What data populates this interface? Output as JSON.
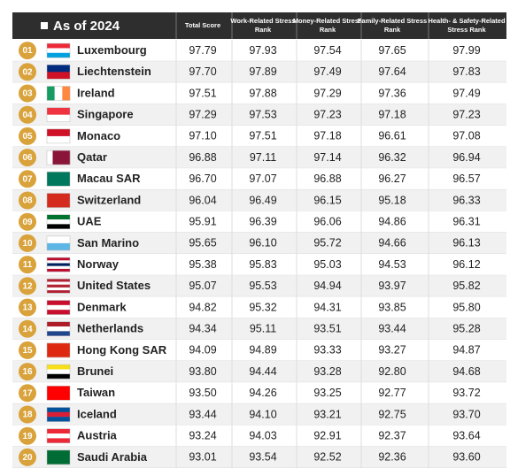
{
  "header": {
    "title": "As of 2024",
    "columns": [
      "Total Score",
      "Work-Related Stress Rank",
      "Money-Related Stress Rank",
      "Family-Related Stress Rank",
      "Health- & Safety-Related Stress Rank"
    ]
  },
  "table": {
    "rows": [
      [
        "01",
        "Luxembourg",
        "97.79",
        "97.93",
        "97.54",
        "97.65",
        "97.99"
      ],
      [
        "02",
        "Liechtenstein",
        "97.70",
        "97.89",
        "97.49",
        "97.64",
        "97.83"
      ],
      [
        "03",
        "Ireland",
        "97.51",
        "97.88",
        "97.29",
        "97.36",
        "97.49"
      ],
      [
        "04",
        "Singapore",
        "97.29",
        "97.53",
        "97.23",
        "97.18",
        "97.23"
      ],
      [
        "05",
        "Monaco",
        "97.10",
        "97.51",
        "97.18",
        "96.61",
        "97.08"
      ],
      [
        "06",
        "Qatar",
        "96.88",
        "97.11",
        "97.14",
        "96.32",
        "96.94"
      ],
      [
        "07",
        "Macau SAR",
        "96.70",
        "97.07",
        "96.88",
        "96.27",
        "96.57"
      ],
      [
        "08",
        "Switzerland",
        "96.04",
        "96.49",
        "96.15",
        "95.18",
        "96.33"
      ],
      [
        "09",
        "UAE",
        "95.91",
        "96.39",
        "96.06",
        "94.86",
        "96.31"
      ],
      [
        "10",
        "San Marino",
        "95.65",
        "96.10",
        "95.72",
        "94.66",
        "96.13"
      ],
      [
        "11",
        "Norway",
        "95.38",
        "95.83",
        "95.03",
        "94.53",
        "96.12"
      ],
      [
        "12",
        "United States",
        "95.07",
        "95.53",
        "94.94",
        "93.97",
        "95.82"
      ],
      [
        "13",
        "Denmark",
        "94.82",
        "95.32",
        "94.31",
        "93.85",
        "95.80"
      ],
      [
        "14",
        "Netherlands",
        "94.34",
        "95.11",
        "93.51",
        "93.44",
        "95.28"
      ],
      [
        "15",
        "Hong Kong SAR",
        "94.09",
        "94.89",
        "93.33",
        "93.27",
        "94.87"
      ],
      [
        "16",
        "Brunei",
        "93.80",
        "94.44",
        "93.28",
        "92.80",
        "94.68"
      ],
      [
        "17",
        "Taiwan",
        "93.50",
        "94.26",
        "93.25",
        "92.77",
        "93.72"
      ],
      [
        "18",
        "Iceland",
        "93.44",
        "94.10",
        "93.21",
        "92.75",
        "93.70"
      ],
      [
        "19",
        "Austria",
        "93.24",
        "94.03",
        "92.91",
        "92.37",
        "93.64"
      ],
      [
        "20",
        "Saudi Arabia",
        "93.01",
        "93.54",
        "92.52",
        "92.36",
        "93.60"
      ]
    ]
  }
}
